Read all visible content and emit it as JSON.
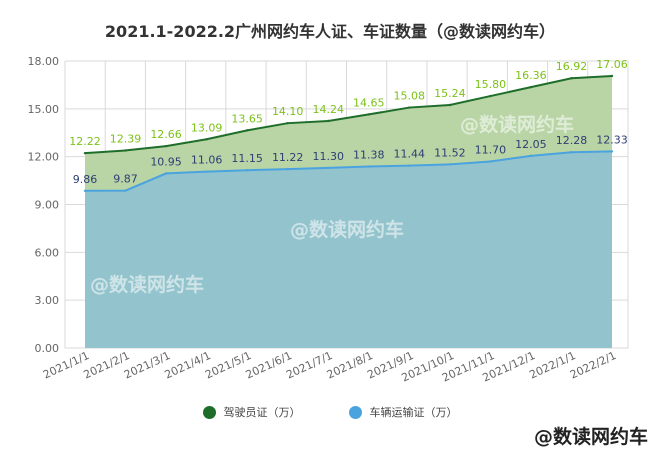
{
  "chart_data": {
    "type": "area",
    "title": "2021.1-2022.2广州网约车人证、车证数量（@数读网约车）",
    "categories": [
      "2021/1/1",
      "2021/2/1",
      "2021/3/1",
      "2021/4/1",
      "2021/5/1",
      "2021/6/1",
      "2021/7/1",
      "2021/8/1",
      "2021/9/1",
      "2021/10/1",
      "2021/11/1",
      "2021/12/1",
      "2022/1/1",
      "2022/2/1"
    ],
    "series": [
      {
        "name": "驾驶员证（万）",
        "values": [
          12.22,
          12.39,
          12.66,
          13.09,
          13.65,
          14.1,
          14.24,
          14.65,
          15.08,
          15.24,
          15.8,
          16.36,
          16.92,
          17.06
        ],
        "color": "#1e6e2a",
        "fill": "#b9d5a6",
        "label_color": "#7cc21a"
      },
      {
        "name": "车辆运输证（万）",
        "values": [
          9.86,
          9.87,
          10.95,
          11.06,
          11.15,
          11.22,
          11.3,
          11.38,
          11.44,
          11.52,
          11.7,
          12.05,
          12.28,
          12.33
        ],
        "color": "#4aa3df",
        "fill": "#93c4cd",
        "label_color": "#2c3e73"
      }
    ],
    "yticks": [
      "0.00",
      "3.00",
      "6.00",
      "9.00",
      "12.00",
      "15.00",
      "18.00"
    ],
    "ylim": [
      0,
      18
    ],
    "grid": true,
    "legend": "bottom"
  },
  "watermarks": [
    "@数读网约车",
    "@数读网约车",
    "@数读网约车"
  ],
  "corner_watermark": "@数读网约车"
}
